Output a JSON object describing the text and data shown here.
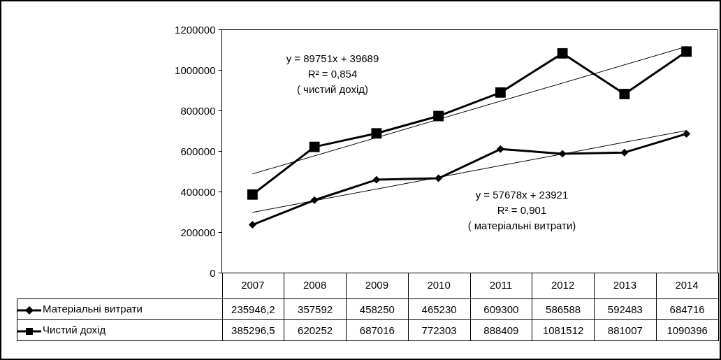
{
  "chart_data": {
    "type": "line",
    "categories": [
      "2007",
      "2008",
      "2009",
      "2010",
      "2011",
      "2012",
      "2013",
      "2014"
    ],
    "series": [
      {
        "name": "Матеріальні витрати",
        "color": "#000000",
        "marker": "diamond",
        "values": [
          235946.2,
          357592,
          458250,
          465230,
          609300,
          586588,
          592483,
          684716
        ],
        "value_labels": [
          "235946,2",
          "357592",
          "458250",
          "465230",
          "609300",
          "586588",
          "592483",
          "684716"
        ]
      },
      {
        "name": "Чистий дохід",
        "color": "#000000",
        "marker": "square",
        "values": [
          385296.5,
          620252,
          687016,
          772303,
          888409,
          1081512,
          881007,
          1090396
        ],
        "value_labels": [
          "385296,5",
          "620252",
          "687016",
          "772303",
          "888409",
          "1081512",
          "881007",
          "1090396"
        ]
      },
      {
        "type": "line",
        "color": "#000000",
        "marker": "none",
        "values": [
          297000,
          355000,
          412000,
          470000,
          528000,
          585000,
          643000,
          701000
        ]
      },
      {
        "type": "line",
        "color": "#000000",
        "marker": "none",
        "values": [
          487000,
          576000,
          666000,
          756000,
          846000,
          935000,
          1025000,
          1115000
        ]
      }
    ],
    "ylim": [
      0,
      1200000
    ],
    "yticks": [
      0,
      200000,
      400000,
      600000,
      800000,
      1000000,
      1200000
    ],
    "grid": false,
    "legend": "bottom",
    "annotations": [
      "y = 89751x + 39689\nR² = 0,854\n( чистий дохід)",
      "y = 57678x + 23921\nR² = 0,901\n( матеріальні витрати)"
    ]
  }
}
